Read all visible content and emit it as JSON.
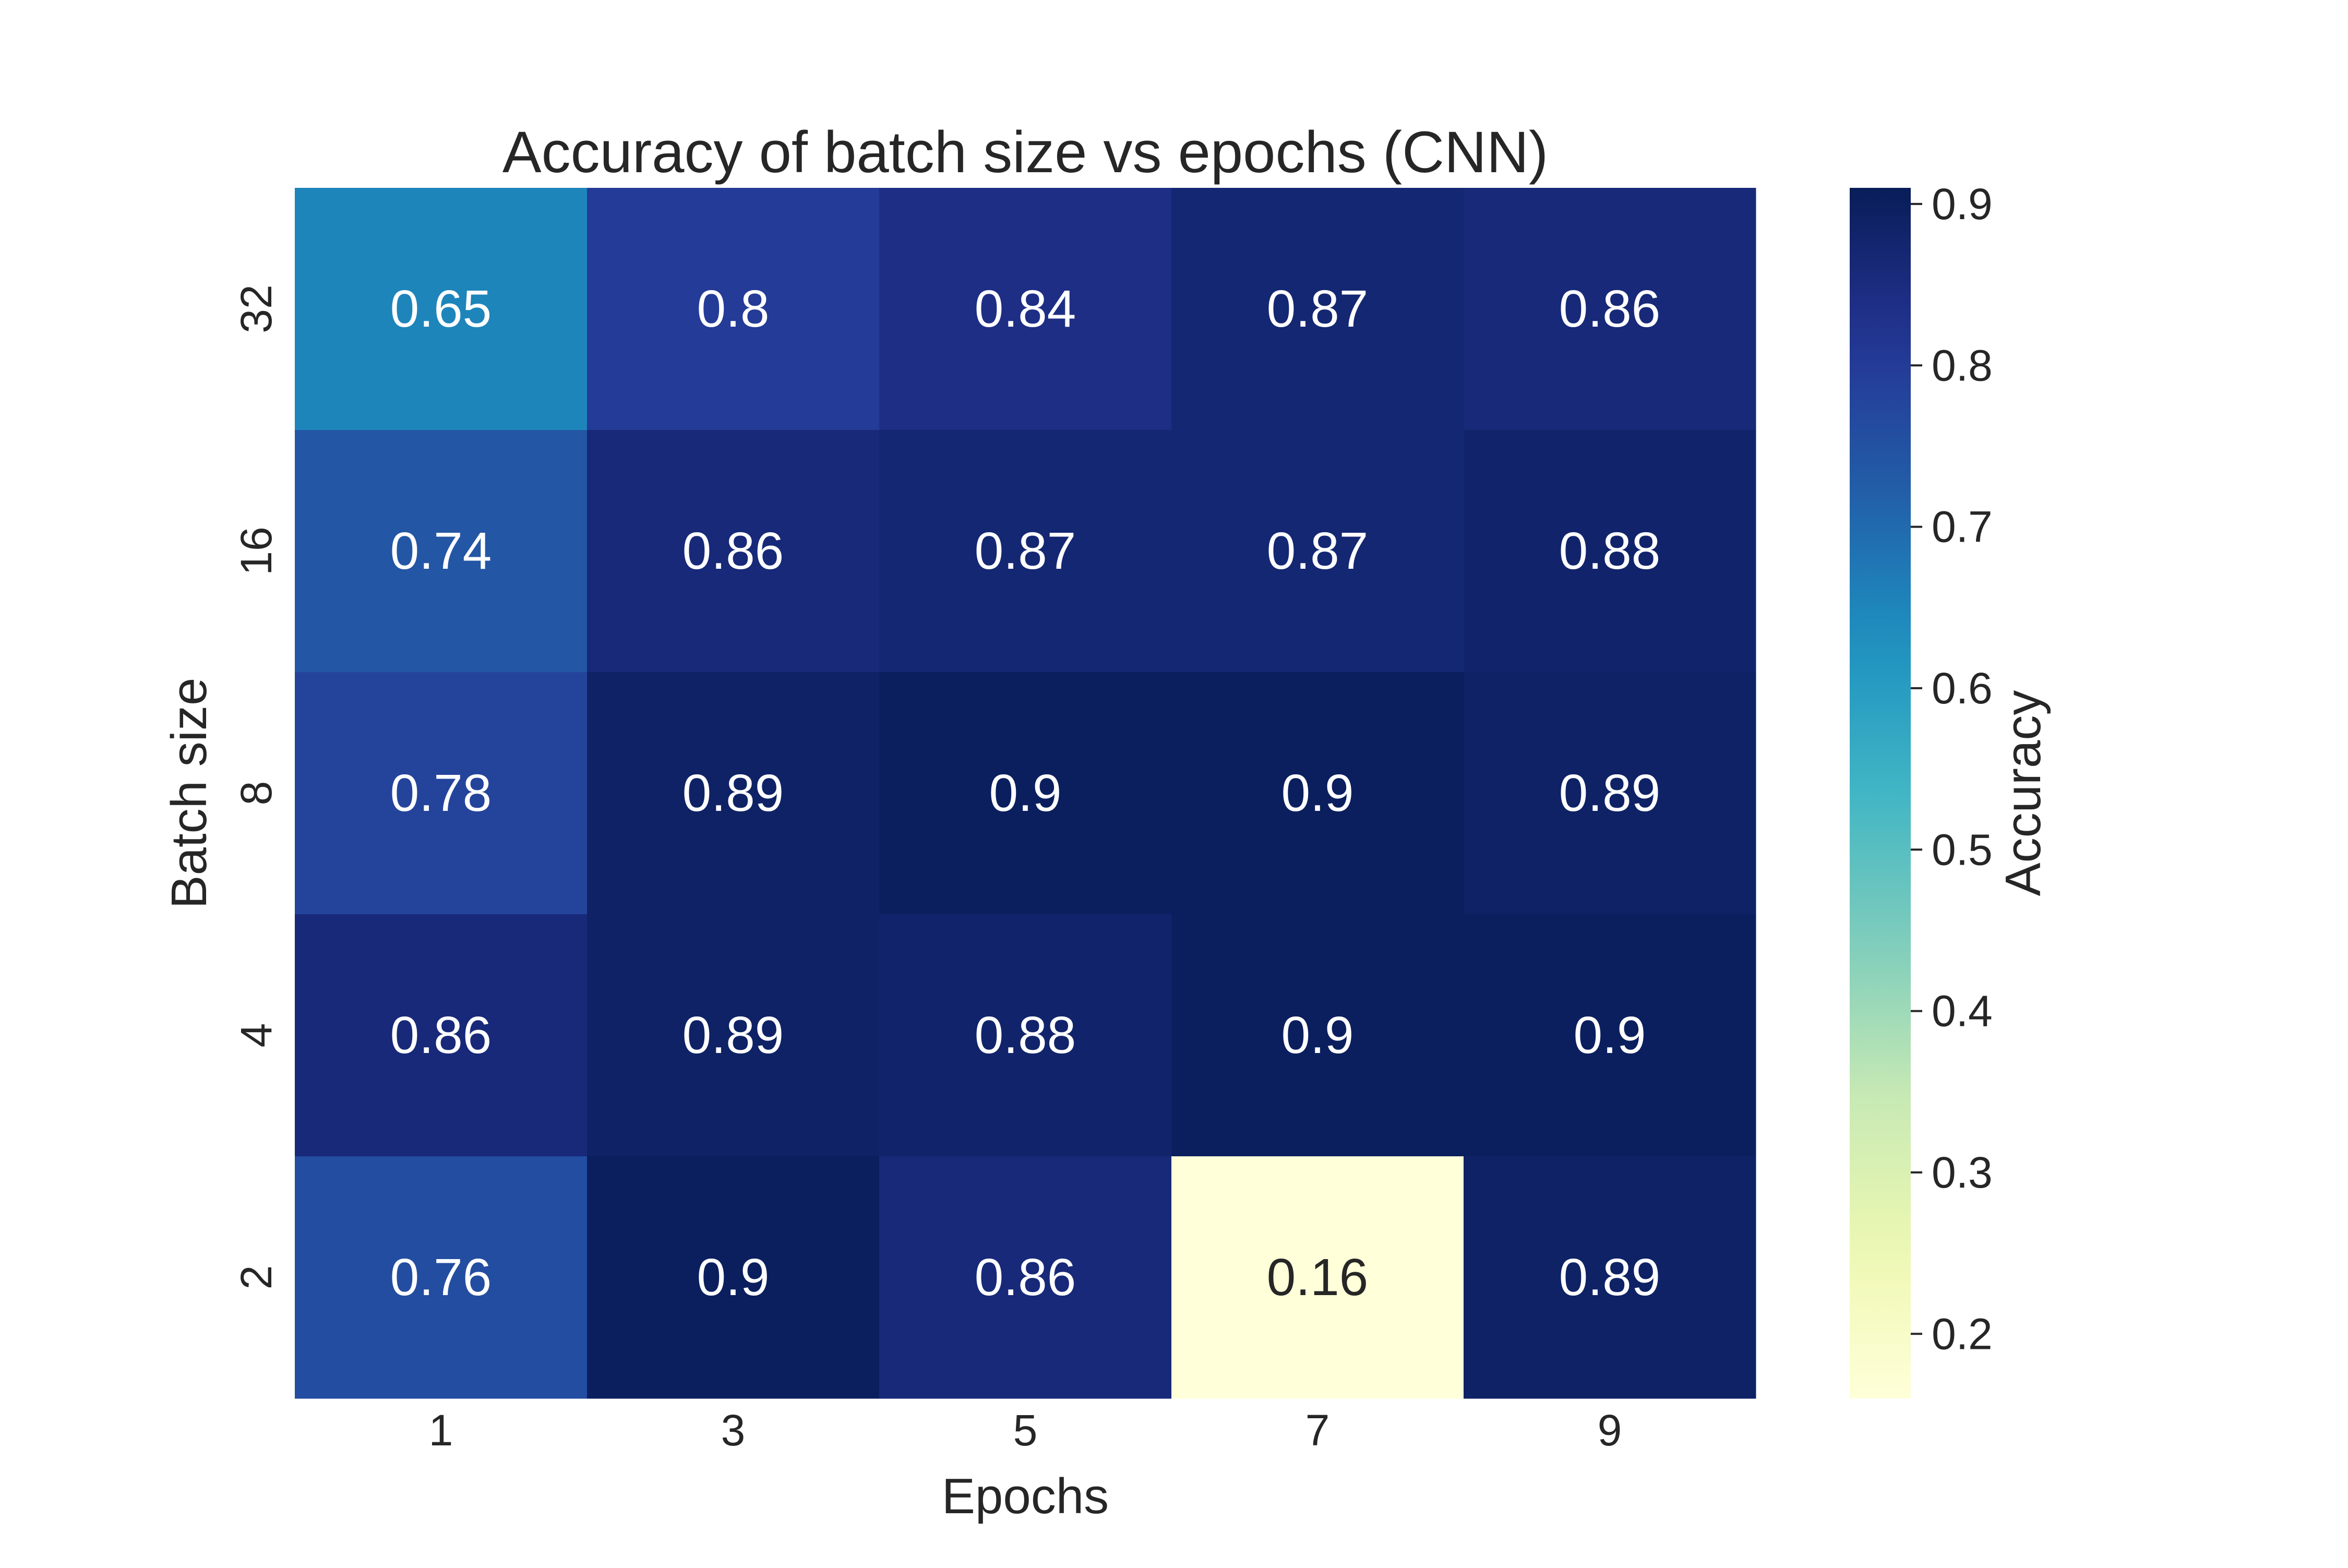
{
  "chart_data": {
    "type": "heatmap",
    "title": "Accuracy of batch size vs epochs (CNN)",
    "xlabel": "Epochs",
    "ylabel": "Batch size",
    "x_categories": [
      "1",
      "3",
      "5",
      "7",
      "9"
    ],
    "y_categories": [
      "32",
      "16",
      "8",
      "4",
      "2"
    ],
    "values": [
      [
        0.65,
        0.8,
        0.84,
        0.87,
        0.86
      ],
      [
        0.74,
        0.86,
        0.87,
        0.87,
        0.88
      ],
      [
        0.78,
        0.89,
        0.9,
        0.9,
        0.89
      ],
      [
        0.86,
        0.89,
        0.88,
        0.9,
        0.9
      ],
      [
        0.76,
        0.9,
        0.86,
        0.16,
        0.89
      ]
    ],
    "value_labels": [
      [
        "0.65",
        "0.8",
        "0.84",
        "0.87",
        "0.86"
      ],
      [
        "0.74",
        "0.86",
        "0.87",
        "0.87",
        "0.88"
      ],
      [
        "0.78",
        "0.89",
        "0.9",
        "0.9",
        "0.89"
      ],
      [
        "0.86",
        "0.89",
        "0.88",
        "0.9",
        "0.9"
      ],
      [
        "0.76",
        "0.9",
        "0.86",
        "0.16",
        "0.89"
      ]
    ],
    "colormap": "YlGnBu",
    "vmin": 0.16,
    "vmax": 0.91,
    "colorbar": {
      "label": "Accuracy",
      "ticks": [
        "0.2",
        "0.3",
        "0.4",
        "0.5",
        "0.6",
        "0.7",
        "0.8",
        "0.9"
      ]
    },
    "annotation_colors": {
      "dark": "#262626",
      "light": "#ffffff"
    }
  }
}
